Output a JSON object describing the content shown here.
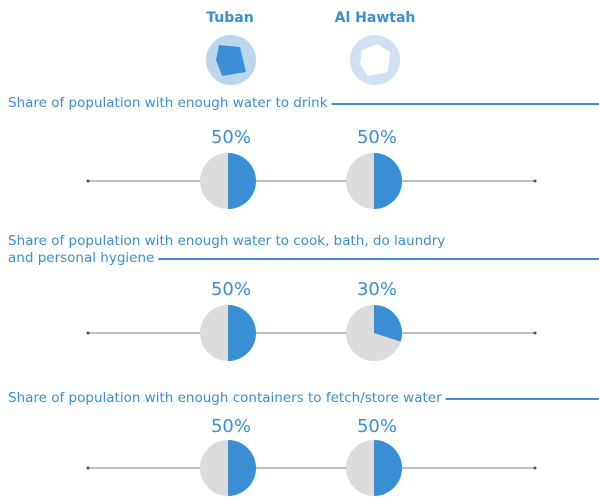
{
  "header": {
    "districts": [
      "Tuban",
      "Al Hawtah"
    ]
  },
  "chart_data": [
    {
      "type": "pie",
      "title": [
        "Share of population with enough water to drink"
      ],
      "values": [
        50,
        50
      ],
      "value_labels": [
        "50%",
        "50%"
      ],
      "color": "#3a8fd4",
      "rest_color": "#dcdcdc"
    },
    {
      "type": "pie",
      "title": [
        "Share of population with enough water to cook, bath, do laundry",
        "and personal hygiene"
      ],
      "values": [
        50,
        30
      ],
      "value_labels": [
        "50%",
        "30%"
      ],
      "color": "#3a8fd4",
      "rest_color": "#dcdcdc"
    },
    {
      "type": "pie",
      "title": [
        "Share of population with enough containers to fetch/store water"
      ],
      "values": [
        50,
        50
      ],
      "value_labels": [
        "50%",
        "50%"
      ],
      "color": "#3a8fd4",
      "rest_color": "#dcdcdc"
    }
  ]
}
